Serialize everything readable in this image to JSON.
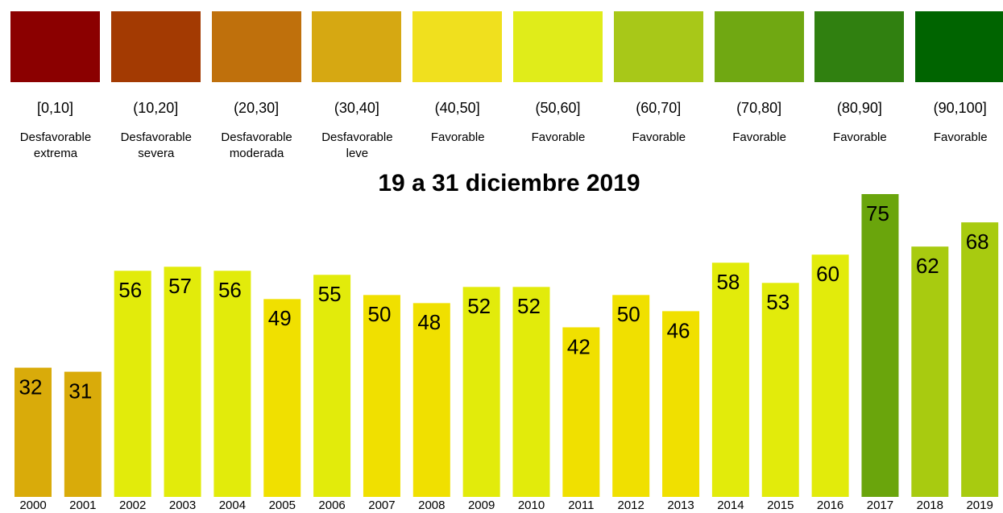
{
  "chart_data": {
    "type": "bar",
    "title": "19 a 31 diciembre 2019",
    "legend": [
      {
        "range": "[0,10]",
        "label": "Desfavorable extrema",
        "color": "#8b0000"
      },
      {
        "range": "(10,20]",
        "label": "Desfavorable severa",
        "color": "#a33a02"
      },
      {
        "range": "(20,30]",
        "label": "Desfavorable moderada",
        "color": "#bf700c"
      },
      {
        "range": "(30,40]",
        "label": "Desfavorable leve",
        "color": "#d6a812"
      },
      {
        "range": "(40,50]",
        "label": "Favorable",
        "color": "#f0e01e"
      },
      {
        "range": "(50,60]",
        "label": "Favorable",
        "color": "#e0ec1a"
      },
      {
        "range": "(60,70]",
        "label": "Favorable",
        "color": "#a8c818"
      },
      {
        "range": "(70,80]",
        "label": "Favorable",
        "color": "#70a812"
      },
      {
        "range": "(80,90]",
        "label": "Favorable",
        "color": "#308010"
      },
      {
        "range": "(90,100]",
        "label": "Favorable",
        "color": "#006400"
      }
    ],
    "categories": [
      "2000",
      "2001",
      "2002",
      "2003",
      "2004",
      "2005",
      "2006",
      "2007",
      "2008",
      "2009",
      "2010",
      "2011",
      "2012",
      "2013",
      "2014",
      "2015",
      "2016",
      "2017",
      "2018",
      "2019"
    ],
    "values": [
      32,
      31,
      56,
      57,
      56,
      49,
      55,
      50,
      48,
      52,
      52,
      42,
      50,
      46,
      58,
      53,
      60,
      75,
      62,
      68
    ],
    "colors": [
      "#d9ab0a",
      "#d9ab0a",
      "#e2eb0b",
      "#e2eb0b",
      "#e2eb0b",
      "#f0e000",
      "#e2eb0b",
      "#f0e000",
      "#f0e000",
      "#e2eb0b",
      "#e2eb0b",
      "#f0e000",
      "#f0e000",
      "#f0e000",
      "#e2eb0b",
      "#e2eb0b",
      "#e2eb0b",
      "#6aa50c",
      "#a8cb10",
      "#a8cb10"
    ]
  }
}
